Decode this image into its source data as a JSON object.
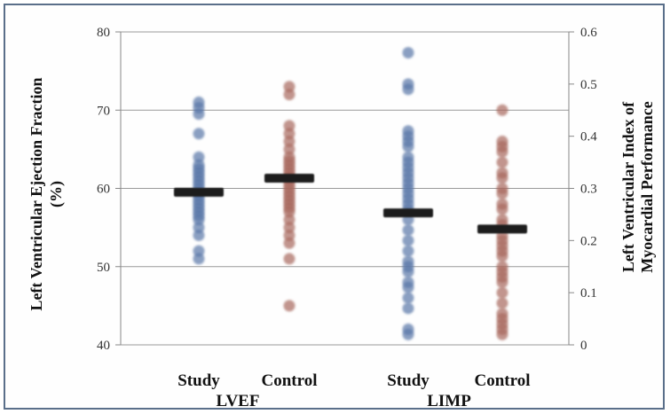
{
  "chart_data": {
    "type": "scatter",
    "subtype": "dot-plot with median bars, dual y-axis",
    "groups": [
      "LVEF",
      "LIMP"
    ],
    "categories": [
      "Study",
      "Control",
      "Study",
      "Control"
    ],
    "ylabel_left": "Left Ventricular Ejection Fraction (%)",
    "ylabel_right": "Left Ventricular Index of Myocardial Performance",
    "ylabel_left_lines": [
      "Left Ventricular Ejection Fraction",
      "(%)"
    ],
    "ylabel_right_lines": [
      "Left Ventricular Index of",
      "Myocardial Performance"
    ],
    "ylim_left": [
      40,
      80
    ],
    "ylim_right": [
      0,
      0.6
    ],
    "yticks_left": [
      "40",
      "50",
      "60",
      "70",
      "80"
    ],
    "yticks_right": [
      "0",
      "0.1",
      "0.2",
      "0.3",
      "0.4",
      "0.5",
      "0.6"
    ],
    "grid": "horizontal",
    "series": [
      {
        "group": "LVEF",
        "category": "Study",
        "axis": "left",
        "color": "#5a78a8",
        "values": [
          71,
          70.3,
          69.5,
          67,
          64,
          63,
          62.5,
          62,
          61.5,
          61,
          60.5,
          60,
          59.5,
          59,
          58.5,
          58,
          57.5,
          57,
          56.5,
          56,
          55,
          54,
          52,
          51
        ],
        "median": 59.5
      },
      {
        "group": "LVEF",
        "category": "Control",
        "axis": "left",
        "color": "#a86a5e",
        "values": [
          73,
          72,
          68,
          67,
          66,
          65,
          64,
          63.5,
          63,
          62.5,
          62,
          61.5,
          61,
          60.5,
          60,
          59.5,
          59,
          58.5,
          58,
          57.5,
          57,
          56,
          55,
          54,
          53,
          51,
          45
        ],
        "median": 61.3
      },
      {
        "group": "LIMP",
        "category": "Study",
        "axis": "right",
        "color": "#5a78a8",
        "values": [
          0.56,
          0.5,
          0.49,
          0.41,
          0.4,
          0.39,
          0.38,
          0.36,
          0.35,
          0.34,
          0.33,
          0.32,
          0.31,
          0.3,
          0.29,
          0.28,
          0.27,
          0.26,
          0.24,
          0.22,
          0.2,
          0.18,
          0.16,
          0.15,
          0.14,
          0.12,
          0.11,
          0.09,
          0.07,
          0.03,
          0.02
        ],
        "median": 0.253
      },
      {
        "group": "LIMP",
        "category": "Control",
        "axis": "right",
        "color": "#a86a5e",
        "values": [
          0.45,
          0.39,
          0.38,
          0.37,
          0.35,
          0.33,
          0.32,
          0.3,
          0.29,
          0.27,
          0.26,
          0.24,
          0.23,
          0.21,
          0.2,
          0.19,
          0.18,
          0.17,
          0.15,
          0.14,
          0.13,
          0.12,
          0.1,
          0.08,
          0.06,
          0.05,
          0.04,
          0.03,
          0.02
        ],
        "median": 0.222
      }
    ]
  }
}
